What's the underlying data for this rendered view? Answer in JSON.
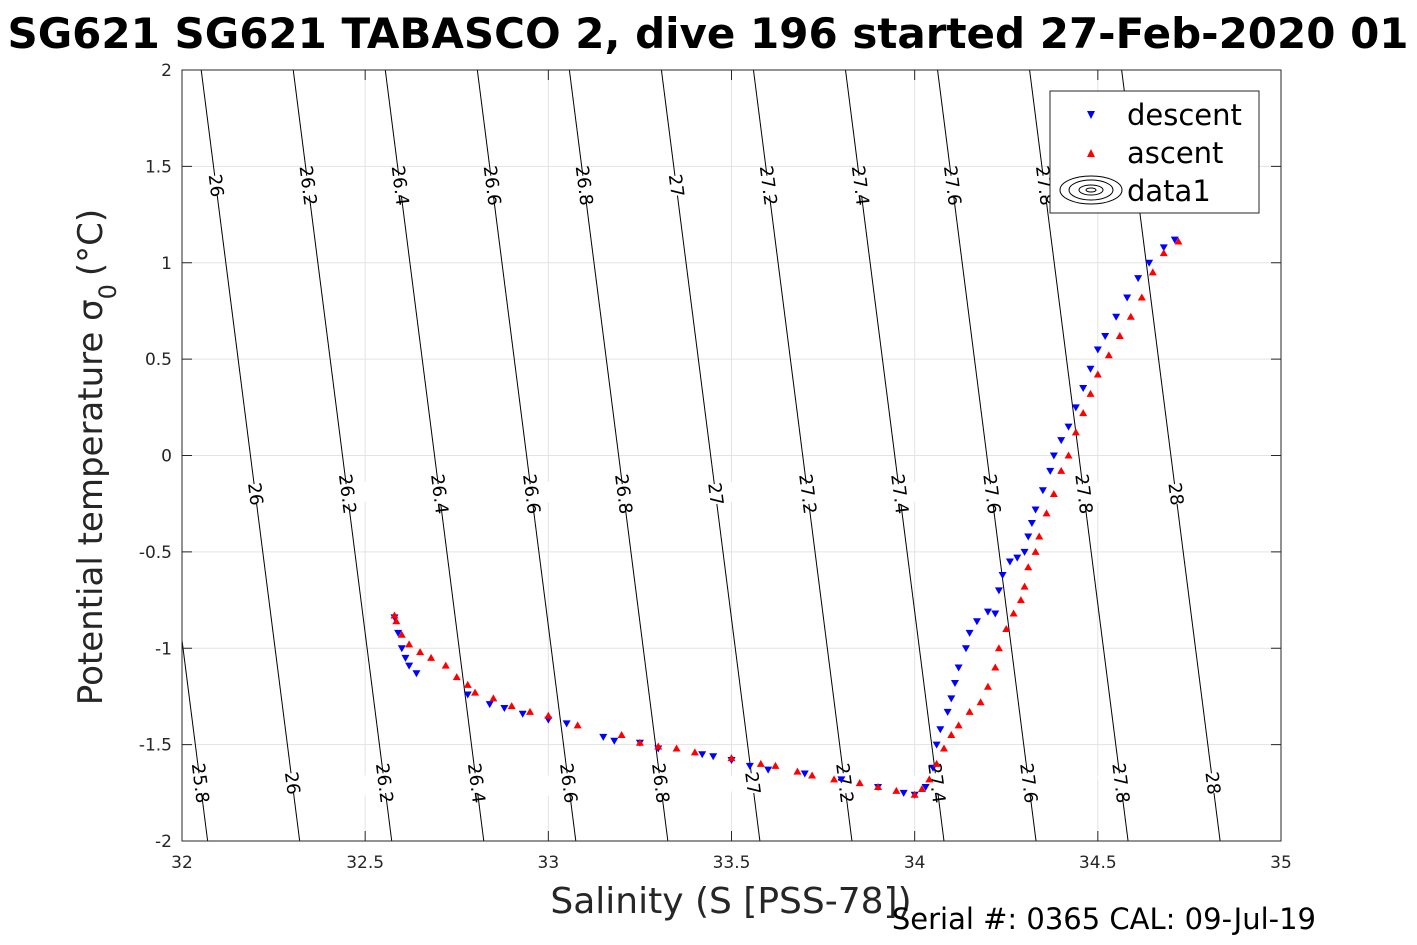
{
  "chart_data": {
    "type": "scatter",
    "title": "SG621 SG621 TABASCO 2, dive 196 started 27-Feb-2020 01",
    "xlabel": "Salinity (S [PSS-78])",
    "ylabel_main": "Potential temperature σ",
    "ylabel_sub": "0",
    "ylabel_unit": "(°C)",
    "xlim": [
      32,
      35
    ],
    "ylim": [
      -2,
      2
    ],
    "xticks": [
      "32",
      "32.5",
      "33",
      "33.5",
      "34",
      "34.5",
      "35"
    ],
    "yticks": [
      "-2",
      "-1.5",
      "-1",
      "-0.5",
      "0",
      "0.5",
      "1",
      "1.5",
      "2"
    ],
    "grid": true,
    "legend_position": "top-right",
    "legend": [
      "descent",
      "ascent",
      "data1"
    ],
    "footer": "Serial #: 0365  CAL: 09-Jul-19",
    "contour_levels": [
      "25.8",
      "26",
      "26.2",
      "26.4",
      "26.6",
      "26.8",
      "27",
      "27.2",
      "27.4",
      "27.6",
      "27.8",
      "28"
    ],
    "series": [
      {
        "name": "descent",
        "color": "#0000ff",
        "marker": "triangle-down",
        "points": [
          [
            32.58,
            -0.84
          ],
          [
            32.59,
            -0.92
          ],
          [
            32.6,
            -1.0
          ],
          [
            32.61,
            -1.05
          ],
          [
            32.62,
            -1.09
          ],
          [
            32.64,
            -1.13
          ],
          [
            32.78,
            -1.24
          ],
          [
            32.84,
            -1.29
          ],
          [
            32.88,
            -1.31
          ],
          [
            32.93,
            -1.34
          ],
          [
            33.0,
            -1.37
          ],
          [
            33.05,
            -1.39
          ],
          [
            33.15,
            -1.46
          ],
          [
            33.18,
            -1.48
          ],
          [
            33.25,
            -1.49
          ],
          [
            33.3,
            -1.52
          ],
          [
            33.42,
            -1.55
          ],
          [
            33.45,
            -1.56
          ],
          [
            33.5,
            -1.58
          ],
          [
            33.55,
            -1.61
          ],
          [
            33.6,
            -1.63
          ],
          [
            33.7,
            -1.65
          ],
          [
            33.8,
            -1.68
          ],
          [
            33.9,
            -1.72
          ],
          [
            33.97,
            -1.75
          ],
          [
            34.0,
            -1.76
          ],
          [
            34.03,
            -1.72
          ],
          [
            34.05,
            -1.62
          ],
          [
            34.06,
            -1.5
          ],
          [
            34.07,
            -1.42
          ],
          [
            34.09,
            -1.33
          ],
          [
            34.1,
            -1.26
          ],
          [
            34.11,
            -1.18
          ],
          [
            34.12,
            -1.1
          ],
          [
            34.14,
            -1.0
          ],
          [
            34.15,
            -0.92
          ],
          [
            34.17,
            -0.86
          ],
          [
            34.2,
            -0.81
          ],
          [
            34.22,
            -0.82
          ],
          [
            34.23,
            -0.7
          ],
          [
            34.24,
            -0.62
          ],
          [
            34.26,
            -0.55
          ],
          [
            34.28,
            -0.53
          ],
          [
            34.3,
            -0.5
          ],
          [
            34.31,
            -0.42
          ],
          [
            34.32,
            -0.35
          ],
          [
            34.33,
            -0.28
          ],
          [
            34.35,
            -0.18
          ],
          [
            34.37,
            -0.08
          ],
          [
            34.38,
            0.0
          ],
          [
            34.4,
            0.08
          ],
          [
            34.42,
            0.15
          ],
          [
            34.44,
            0.25
          ],
          [
            34.46,
            0.35
          ],
          [
            34.48,
            0.45
          ],
          [
            34.5,
            0.55
          ],
          [
            34.52,
            0.62
          ],
          [
            34.55,
            0.72
          ],
          [
            34.58,
            0.82
          ],
          [
            34.61,
            0.92
          ],
          [
            34.64,
            1.0
          ],
          [
            34.68,
            1.08
          ],
          [
            34.71,
            1.12
          ]
        ]
      },
      {
        "name": "ascent",
        "color": "#ff0000",
        "marker": "triangle-up",
        "points": [
          [
            32.58,
            -0.83
          ],
          [
            32.585,
            -0.86
          ],
          [
            32.6,
            -0.93
          ],
          [
            32.62,
            -0.98
          ],
          [
            32.65,
            -1.02
          ],
          [
            32.68,
            -1.05
          ],
          [
            32.72,
            -1.09
          ],
          [
            32.75,
            -1.15
          ],
          [
            32.78,
            -1.19
          ],
          [
            32.8,
            -1.23
          ],
          [
            32.85,
            -1.26
          ],
          [
            32.9,
            -1.3
          ],
          [
            32.95,
            -1.33
          ],
          [
            33.0,
            -1.35
          ],
          [
            33.08,
            -1.4
          ],
          [
            33.2,
            -1.45
          ],
          [
            33.25,
            -1.49
          ],
          [
            33.3,
            -1.51
          ],
          [
            33.35,
            -1.52
          ],
          [
            33.4,
            -1.54
          ],
          [
            33.5,
            -1.57
          ],
          [
            33.58,
            -1.6
          ],
          [
            33.62,
            -1.61
          ],
          [
            33.68,
            -1.64
          ],
          [
            33.72,
            -1.66
          ],
          [
            33.78,
            -1.68
          ],
          [
            33.85,
            -1.7
          ],
          [
            33.9,
            -1.72
          ],
          [
            33.95,
            -1.74
          ],
          [
            34.0,
            -1.76
          ],
          [
            34.02,
            -1.73
          ],
          [
            34.04,
            -1.68
          ],
          [
            34.06,
            -1.6
          ],
          [
            34.08,
            -1.52
          ],
          [
            34.1,
            -1.45
          ],
          [
            34.12,
            -1.4
          ],
          [
            34.15,
            -1.33
          ],
          [
            34.18,
            -1.28
          ],
          [
            34.2,
            -1.2
          ],
          [
            34.22,
            -1.1
          ],
          [
            34.23,
            -1.0
          ],
          [
            34.25,
            -0.9
          ],
          [
            34.27,
            -0.82
          ],
          [
            34.29,
            -0.75
          ],
          [
            34.3,
            -0.68
          ],
          [
            34.31,
            -0.58
          ],
          [
            34.33,
            -0.5
          ],
          [
            34.34,
            -0.42
          ],
          [
            34.36,
            -0.3
          ],
          [
            34.38,
            -0.2
          ],
          [
            34.4,
            -0.08
          ],
          [
            34.42,
            0.0
          ],
          [
            34.44,
            0.12
          ],
          [
            34.46,
            0.22
          ],
          [
            34.48,
            0.32
          ],
          [
            34.5,
            0.42
          ],
          [
            34.53,
            0.52
          ],
          [
            34.56,
            0.62
          ],
          [
            34.59,
            0.72
          ],
          [
            34.62,
            0.82
          ],
          [
            34.65,
            0.95
          ],
          [
            34.68,
            1.05
          ],
          [
            34.72,
            1.11
          ]
        ]
      }
    ]
  }
}
